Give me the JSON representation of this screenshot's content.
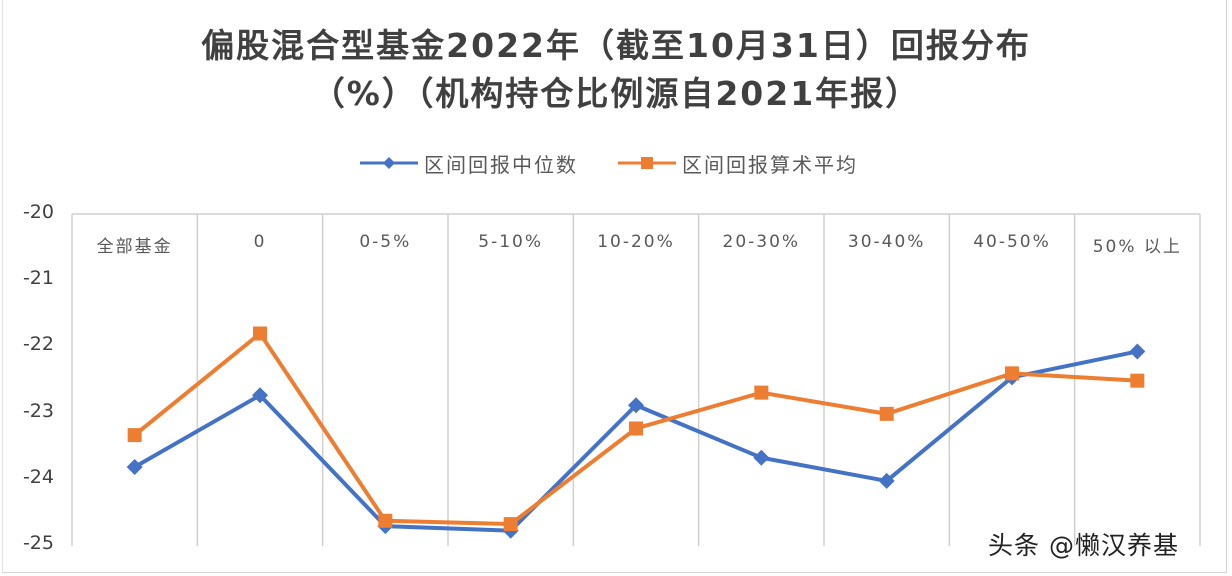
{
  "chart_data": {
    "type": "line",
    "title": "偏股混合型基金2022年（截至10月31日）回报分布（%）（机构持仓比例源自2021年报）",
    "title_lines": [
      "偏股混合型基金2022年（截至10月31日）回报分布",
      "（%）（机构持仓比例源自2021年报）"
    ],
    "xlabel": "",
    "ylabel": "",
    "categories": [
      "全部基金",
      "0",
      "0-5%",
      "5-10%",
      "10-20%",
      "20-30%",
      "30-40%",
      "40-50%",
      "50% 以上"
    ],
    "series": [
      {
        "name": "区间回报中位数",
        "color": "#4472C4",
        "marker": "diamond",
        "values": [
          -23.81,
          -22.73,
          -24.7,
          -24.77,
          -22.88,
          -23.67,
          -24.02,
          -22.46,
          -22.07
        ]
      },
      {
        "name": "区间回报算术平均",
        "color": "#ED7D31",
        "marker": "square",
        "values": [
          -23.33,
          -21.8,
          -24.62,
          -24.67,
          -23.23,
          -22.69,
          -23.01,
          -22.4,
          -22.51
        ]
      }
    ],
    "ylim": [
      -25,
      -20
    ],
    "yticks": [
      "-20",
      "-21",
      "-22",
      "-23",
      "-24",
      "-25"
    ],
    "grid": "vertical category separators",
    "legend_position": "top"
  },
  "watermark": "头条 @懒汉养基"
}
